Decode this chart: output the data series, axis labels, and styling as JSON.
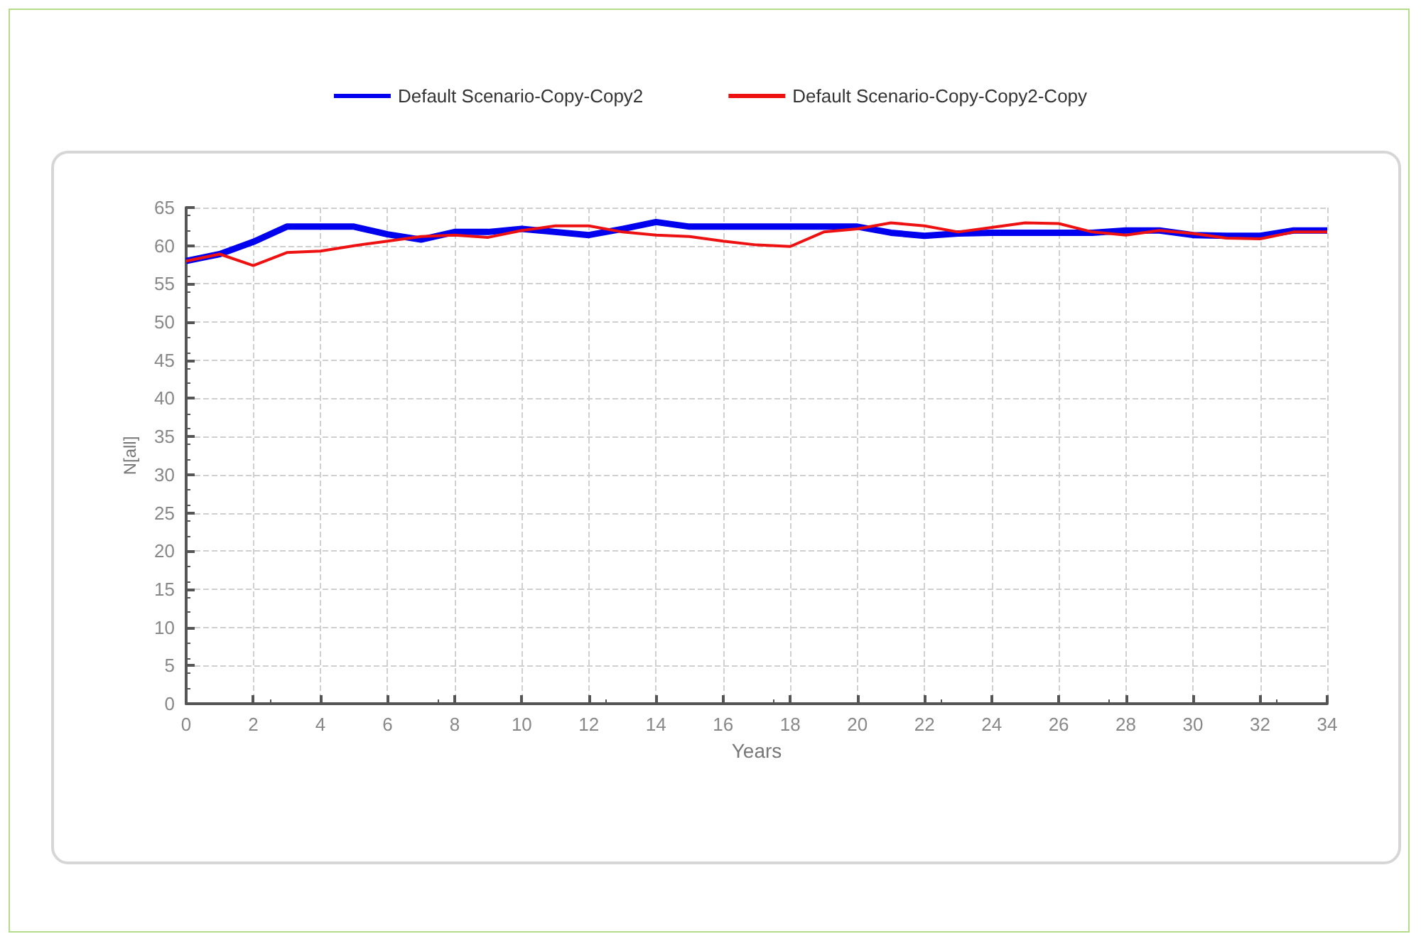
{
  "chart_data": {
    "type": "line",
    "xlabel": "Years",
    "ylabel": "N[all]",
    "x": [
      0,
      1,
      2,
      3,
      4,
      5,
      6,
      7,
      8,
      9,
      10,
      11,
      12,
      13,
      14,
      15,
      16,
      17,
      18,
      19,
      20,
      21,
      22,
      23,
      24,
      25,
      26,
      27,
      28,
      29,
      30,
      31,
      32,
      33,
      34
    ],
    "series": [
      {
        "name": "Default Scenario-Copy-Copy2",
        "color": "#0000ee",
        "values": [
          58,
          58.9,
          60.5,
          62.5,
          62.5,
          62.5,
          61.5,
          60.8,
          61.8,
          61.8,
          62.2,
          61.8,
          61.4,
          62.2,
          63.1,
          62.5,
          62.5,
          62.5,
          62.5,
          62.5,
          62.5,
          61.7,
          61.3,
          61.6,
          61.7,
          61.7,
          61.7,
          61.7,
          62,
          62,
          61.4,
          61.3,
          61.3,
          62,
          62
        ]
      },
      {
        "name": "Default Scenario-Copy-Copy2-Copy",
        "color": "#ee1111",
        "values": [
          58,
          58.9,
          57.4,
          59.1,
          59.3,
          60,
          60.6,
          61.2,
          61.4,
          61.1,
          62,
          62.6,
          62.6,
          61.8,
          61.4,
          61.2,
          60.6,
          60.1,
          59.9,
          61.8,
          62.2,
          63,
          62.6,
          61.8,
          62.4,
          63,
          62.9,
          61.8,
          61.4,
          62,
          61.6,
          61,
          60.9,
          61.8,
          61.8
        ]
      }
    ],
    "xlim": [
      0,
      34
    ],
    "xticks": [
      0,
      2,
      4,
      6,
      8,
      10,
      12,
      14,
      16,
      18,
      20,
      22,
      24,
      26,
      28,
      30,
      32,
      34
    ],
    "ylim": [
      0,
      65
    ],
    "yticks": [
      0,
      5,
      10,
      15,
      20,
      25,
      30,
      35,
      40,
      45,
      50,
      55,
      60,
      65
    ],
    "grid": true,
    "legend": "top",
    "marker": "none",
    "line_style": "solid"
  }
}
